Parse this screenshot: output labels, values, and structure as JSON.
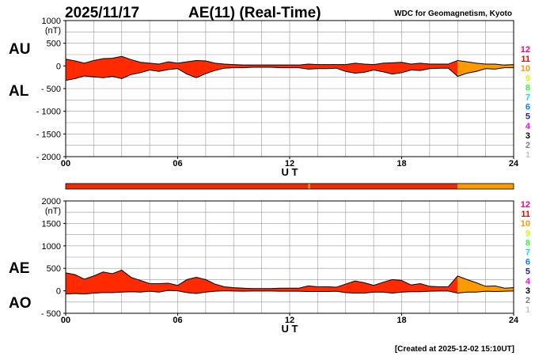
{
  "header": {
    "date": "2025/11/17",
    "title": "AE(11) (Real-Time)",
    "credit": "WDC for Geomagnetism, Kyoto"
  },
  "footer": {
    "created": "[Created at 2025-12-02 15:10UT]"
  },
  "colors": {
    "fill_main": "#ff2a00",
    "fill_late": "#ff9900",
    "line": "#000000",
    "grid": "#999999",
    "bar_main": "#ee2a00",
    "bar_late": "#ff9900"
  },
  "station_scale": [
    {
      "label": "12",
      "color": "#ff0080"
    },
    {
      "label": "11",
      "color": "#ff0000"
    },
    {
      "label": "10",
      "color": "#ff9900"
    },
    {
      "label": "9",
      "color": "#ccff00"
    },
    {
      "label": "8",
      "color": "#33ff33"
    },
    {
      "label": "7",
      "color": "#00e6e6"
    },
    {
      "label": "6",
      "color": "#0080ff"
    },
    {
      "label": "5",
      "color": "#2020d0"
    },
    {
      "label": "4",
      "color": "#ff00ff"
    },
    {
      "label": "3",
      "color": "#000000"
    },
    {
      "label": "2",
      "color": "#808080"
    },
    {
      "label": "1",
      "color": "#c8c8c8"
    }
  ],
  "station_bar": {
    "segments": [
      {
        "start": 0,
        "end": 13.0,
        "color": "#ee2a00"
      },
      {
        "start": 13.0,
        "end": 13.1,
        "color": "#ff9900"
      },
      {
        "start": 13.1,
        "end": 21.0,
        "color": "#ee2a00"
      },
      {
        "start": 21.0,
        "end": 24.0,
        "color": "#ff9900"
      }
    ]
  },
  "chart_data": [
    {
      "type": "area",
      "panel": "AU/AL",
      "upper_label": "AU",
      "lower_label": "AL",
      "xlabel": "U T",
      "ylabel_unit": "(nT)",
      "xlim": [
        0,
        24
      ],
      "ylim": [
        -2000,
        1000
      ],
      "xticks": [
        "00",
        "06",
        "12",
        "18",
        "24"
      ],
      "yticks": [
        "1000",
        "500",
        "0",
        "- 500",
        "- 1000",
        "- 1500",
        "- 2000"
      ],
      "ytick_values": [
        1000,
        500,
        0,
        -500,
        -1000,
        -1500,
        -2000
      ],
      "grid": true,
      "x": [
        0,
        0.5,
        1,
        1.5,
        2,
        2.5,
        3,
        3.5,
        4,
        4.5,
        5,
        5.5,
        6,
        6.5,
        7,
        7.5,
        8,
        8.5,
        9,
        9.5,
        10,
        10.5,
        11,
        11.5,
        12,
        12.5,
        13,
        13.5,
        14,
        14.5,
        15,
        15.5,
        16,
        16.5,
        17,
        17.5,
        18,
        18.5,
        19,
        19.5,
        20,
        20.5,
        21,
        21.5,
        22,
        22.5,
        23,
        23.5,
        24
      ],
      "series": [
        {
          "name": "AU",
          "values": [
            150,
            110,
            60,
            120,
            160,
            170,
            210,
            140,
            80,
            60,
            40,
            90,
            60,
            90,
            120,
            110,
            60,
            40,
            30,
            20,
            20,
            20,
            20,
            20,
            20,
            20,
            40,
            30,
            30,
            30,
            30,
            60,
            40,
            30,
            60,
            70,
            80,
            40,
            60,
            40,
            40,
            40,
            120,
            90,
            60,
            40,
            40,
            20,
            30
          ]
        },
        {
          "name": "AL",
          "values": [
            -320,
            -280,
            -220,
            -240,
            -260,
            -230,
            -280,
            -190,
            -150,
            -90,
            -120,
            -80,
            -60,
            -180,
            -260,
            -170,
            -100,
            -50,
            -40,
            -40,
            -30,
            -30,
            -30,
            -40,
            -40,
            -40,
            -70,
            -60,
            -60,
            -50,
            -120,
            -160,
            -140,
            -90,
            -130,
            -180,
            -150,
            -90,
            -100,
            -60,
            -50,
            -50,
            -230,
            -160,
            -120,
            -60,
            -70,
            -40,
            -40
          ]
        }
      ]
    },
    {
      "type": "area",
      "panel": "AE/AO",
      "upper_label": "AE",
      "lower_label": "AO",
      "xlabel": "U T",
      "ylabel_unit": "(nT)",
      "xlim": [
        0,
        24
      ],
      "ylim": [
        -500,
        2000
      ],
      "xticks": [
        "00",
        "06",
        "12",
        "18",
        "24"
      ],
      "yticks": [
        "2000",
        "1500",
        "1000",
        "500",
        "0",
        "- 500"
      ],
      "ytick_values": [
        2000,
        1500,
        1000,
        500,
        0,
        -500
      ],
      "grid": true,
      "x": [
        0,
        0.5,
        1,
        1.5,
        2,
        2.5,
        3,
        3.5,
        4,
        4.5,
        5,
        5.5,
        6,
        6.5,
        7,
        7.5,
        8,
        8.5,
        9,
        9.5,
        10,
        10.5,
        11,
        11.5,
        12,
        12.5,
        13,
        13.5,
        14,
        14.5,
        15,
        15.5,
        16,
        16.5,
        17,
        17.5,
        18,
        18.5,
        19,
        19.5,
        20,
        20.5,
        21,
        21.5,
        22,
        22.5,
        23,
        23.5,
        24
      ],
      "series": [
        {
          "name": "AE",
          "values": [
            400,
            360,
            260,
            330,
            420,
            380,
            460,
            300,
            230,
            160,
            160,
            170,
            120,
            250,
            300,
            250,
            150,
            90,
            70,
            60,
            50,
            50,
            50,
            60,
            60,
            60,
            110,
            90,
            90,
            80,
            150,
            220,
            180,
            120,
            190,
            250,
            230,
            130,
            160,
            100,
            90,
            90,
            330,
            250,
            180,
            100,
            110,
            60,
            70
          ]
        },
        {
          "name": "AO",
          "values": [
            -70,
            -60,
            -70,
            -50,
            -40,
            -40,
            -30,
            -20,
            -30,
            -10,
            -30,
            10,
            0,
            -40,
            -60,
            -30,
            -10,
            0,
            -5,
            -10,
            -5,
            -5,
            -5,
            -10,
            -10,
            -10,
            -15,
            -15,
            -15,
            -10,
            -40,
            -50,
            -50,
            -30,
            -30,
            -50,
            -30,
            -20,
            -20,
            -10,
            -5,
            -5,
            -50,
            -30,
            -30,
            -10,
            -15,
            -10,
            -5
          ]
        }
      ]
    }
  ]
}
